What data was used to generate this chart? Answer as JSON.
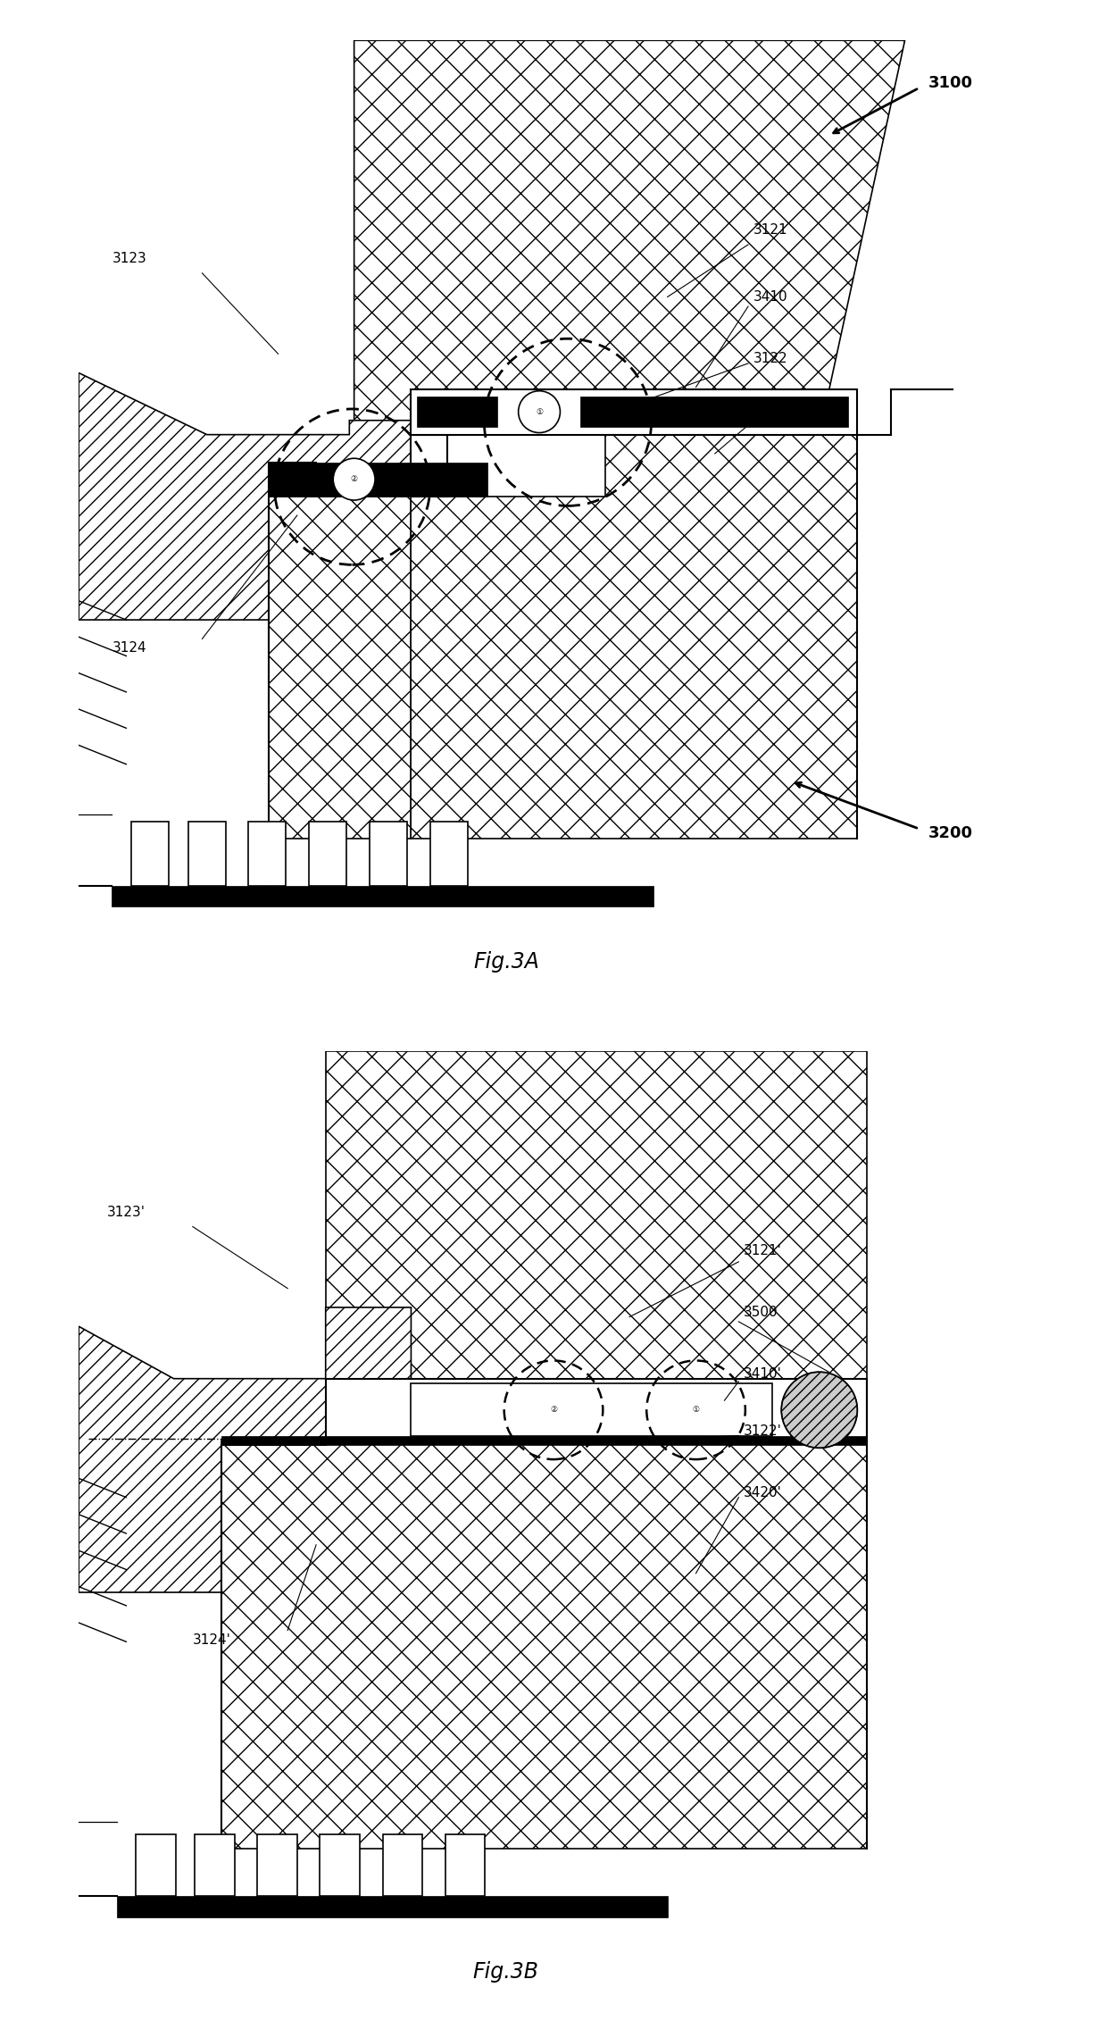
{
  "fig_title_a": "Fig.3A",
  "fig_title_b": "Fig.3B",
  "bg_color": "#ffffff",
  "label_3100": "3100",
  "label_3200": "3200",
  "label_3121": "3121",
  "label_3122": "3122",
  "label_3123": "3123",
  "label_3124": "3124",
  "label_3410": "3410",
  "label_3420": "3420",
  "label_3121p": "3121'",
  "label_3122p": "3122'",
  "label_3123p": "3123'",
  "label_3124p": "3124'",
  "label_3410p": "3410'",
  "label_3420p": "3420'",
  "label_3500": "3500"
}
